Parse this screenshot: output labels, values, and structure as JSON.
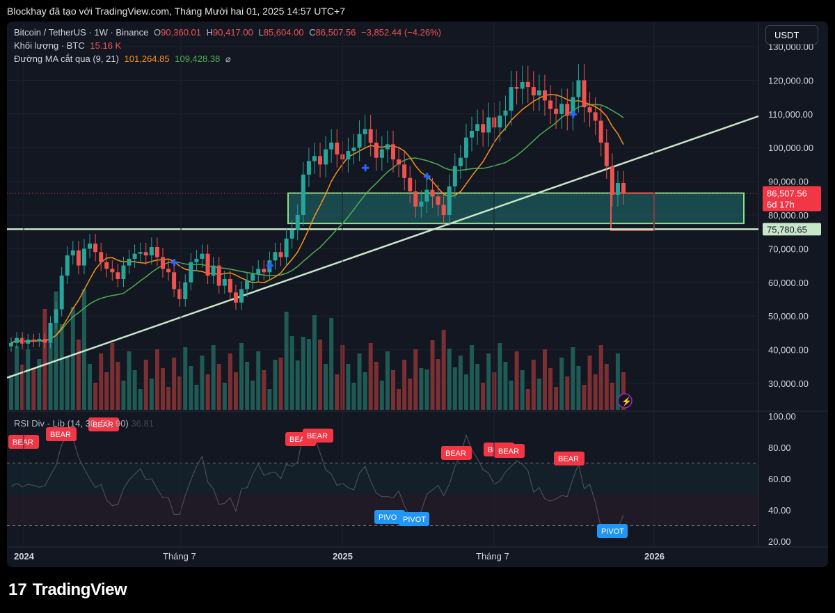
{
  "caption": "Blockhay đã tạo với TradingView.com, Tháng Mười hai 01, 2025 14:57 UTC+7",
  "legend": {
    "symbol": "Bitcoin / TetherUS · 1W · Binance",
    "o_label": "O",
    "o_value": "90,360.01",
    "h_label": "H",
    "h_value": "90,417.00",
    "l_label": "L",
    "l_value": "85,604.00",
    "c_label": "C",
    "c_value": "86,507.56",
    "change": "−3,852.44 (−4.26%)",
    "volume_label": "Khối lượng · BTC",
    "volume_value": "15.16 K",
    "ma_label": "Đường MA cắt qua (9, 21)",
    "ma_fast": "101,264.85",
    "ma_slow": "109,428.38",
    "ma_icon": "⌀"
  },
  "currency_button": "USDT",
  "price_axis": [
    "130,000.00",
    "120,000.00",
    "110,000.00",
    "100,000.00",
    "90,000.00",
    "80,000.00",
    "70,000.00",
    "60,000.00",
    "50,000.00",
    "40,000.00",
    "30,000.00"
  ],
  "price_labels": {
    "last": "86,507.56",
    "countdown": "6d 17h",
    "support": "75,780.65"
  },
  "rsi": {
    "title": "RSI Div - Lib",
    "params": "(14, 30, 50, 90)",
    "value": "36.81",
    "axis": [
      "100.00",
      "80.00",
      "60.00",
      "40.00",
      "20.00"
    ],
    "bear_label": "BEAR",
    "pivot_label": "PIVOT",
    "pivot_short": "PIVO"
  },
  "time_axis": [
    "2024",
    "Tháng 7",
    "2025",
    "Tháng 7",
    "2026"
  ],
  "brand": {
    "mark": "17",
    "name": "TradingView"
  },
  "colors": {
    "background": "#131722",
    "up": "#26a69a",
    "down": "#ef5350",
    "ma_fast": "#f7931a",
    "ma_slow": "#4caf50",
    "zone": "#26a69a",
    "trendline": "#c8e6c9",
    "bear_tag": "#f23645",
    "pivot_tag": "#2196f3"
  },
  "chart_data": {
    "type": "candlestick",
    "timeframe": "1W",
    "x_range": [
      "2023-12",
      "2025-12"
    ],
    "ylim": [
      25000,
      135000
    ],
    "ohlc_last": {
      "open": 90360.01,
      "high": 90417.0,
      "low": 85604.0,
      "close": 86507.56
    },
    "closes": [
      42000,
      43500,
      41800,
      43000,
      42500,
      43200,
      42100,
      48000,
      52000,
      62000,
      68000,
      69500,
      65000,
      70000,
      71500,
      69000,
      66000,
      64000,
      63000,
      61000,
      65000,
      67000,
      68500,
      69000,
      68000,
      70500,
      67500,
      64000,
      63000,
      58000,
      55000,
      60000,
      66000,
      67000,
      68500,
      62000,
      65000,
      59000,
      61000,
      57000,
      54000,
      58000,
      60500,
      62500,
      64000,
      63000,
      66500,
      69000,
      67500,
      73000,
      75500,
      80000,
      92000,
      96000,
      97500,
      95000,
      99500,
      101500,
      98000,
      96500,
      99000,
      100000,
      104000,
      105500,
      101500,
      97000,
      99500,
      101000,
      96500,
      95000,
      91000,
      87000,
      82500,
      84000,
      87500,
      85500,
      83000,
      80000,
      88500,
      94500,
      97000,
      103000,
      105000,
      107000,
      104500,
      109000,
      106000,
      109500,
      111000,
      118000,
      117500,
      119500,
      118000,
      115500,
      117000,
      114000,
      111500,
      110000,
      113000,
      109500,
      115000,
      120000,
      112000,
      110500,
      108000,
      101500,
      94500,
      86000,
      89500,
      86507.56
    ],
    "ma_fast_last": 101264.85,
    "ma_slow_last": 109428.38,
    "demand_zone": [
      77500,
      86500
    ],
    "support_level": 75780.65,
    "volume_last_btc": "15.16 K",
    "rsi_last": 36.81,
    "rsi_levels": [
      30,
      70
    ]
  }
}
